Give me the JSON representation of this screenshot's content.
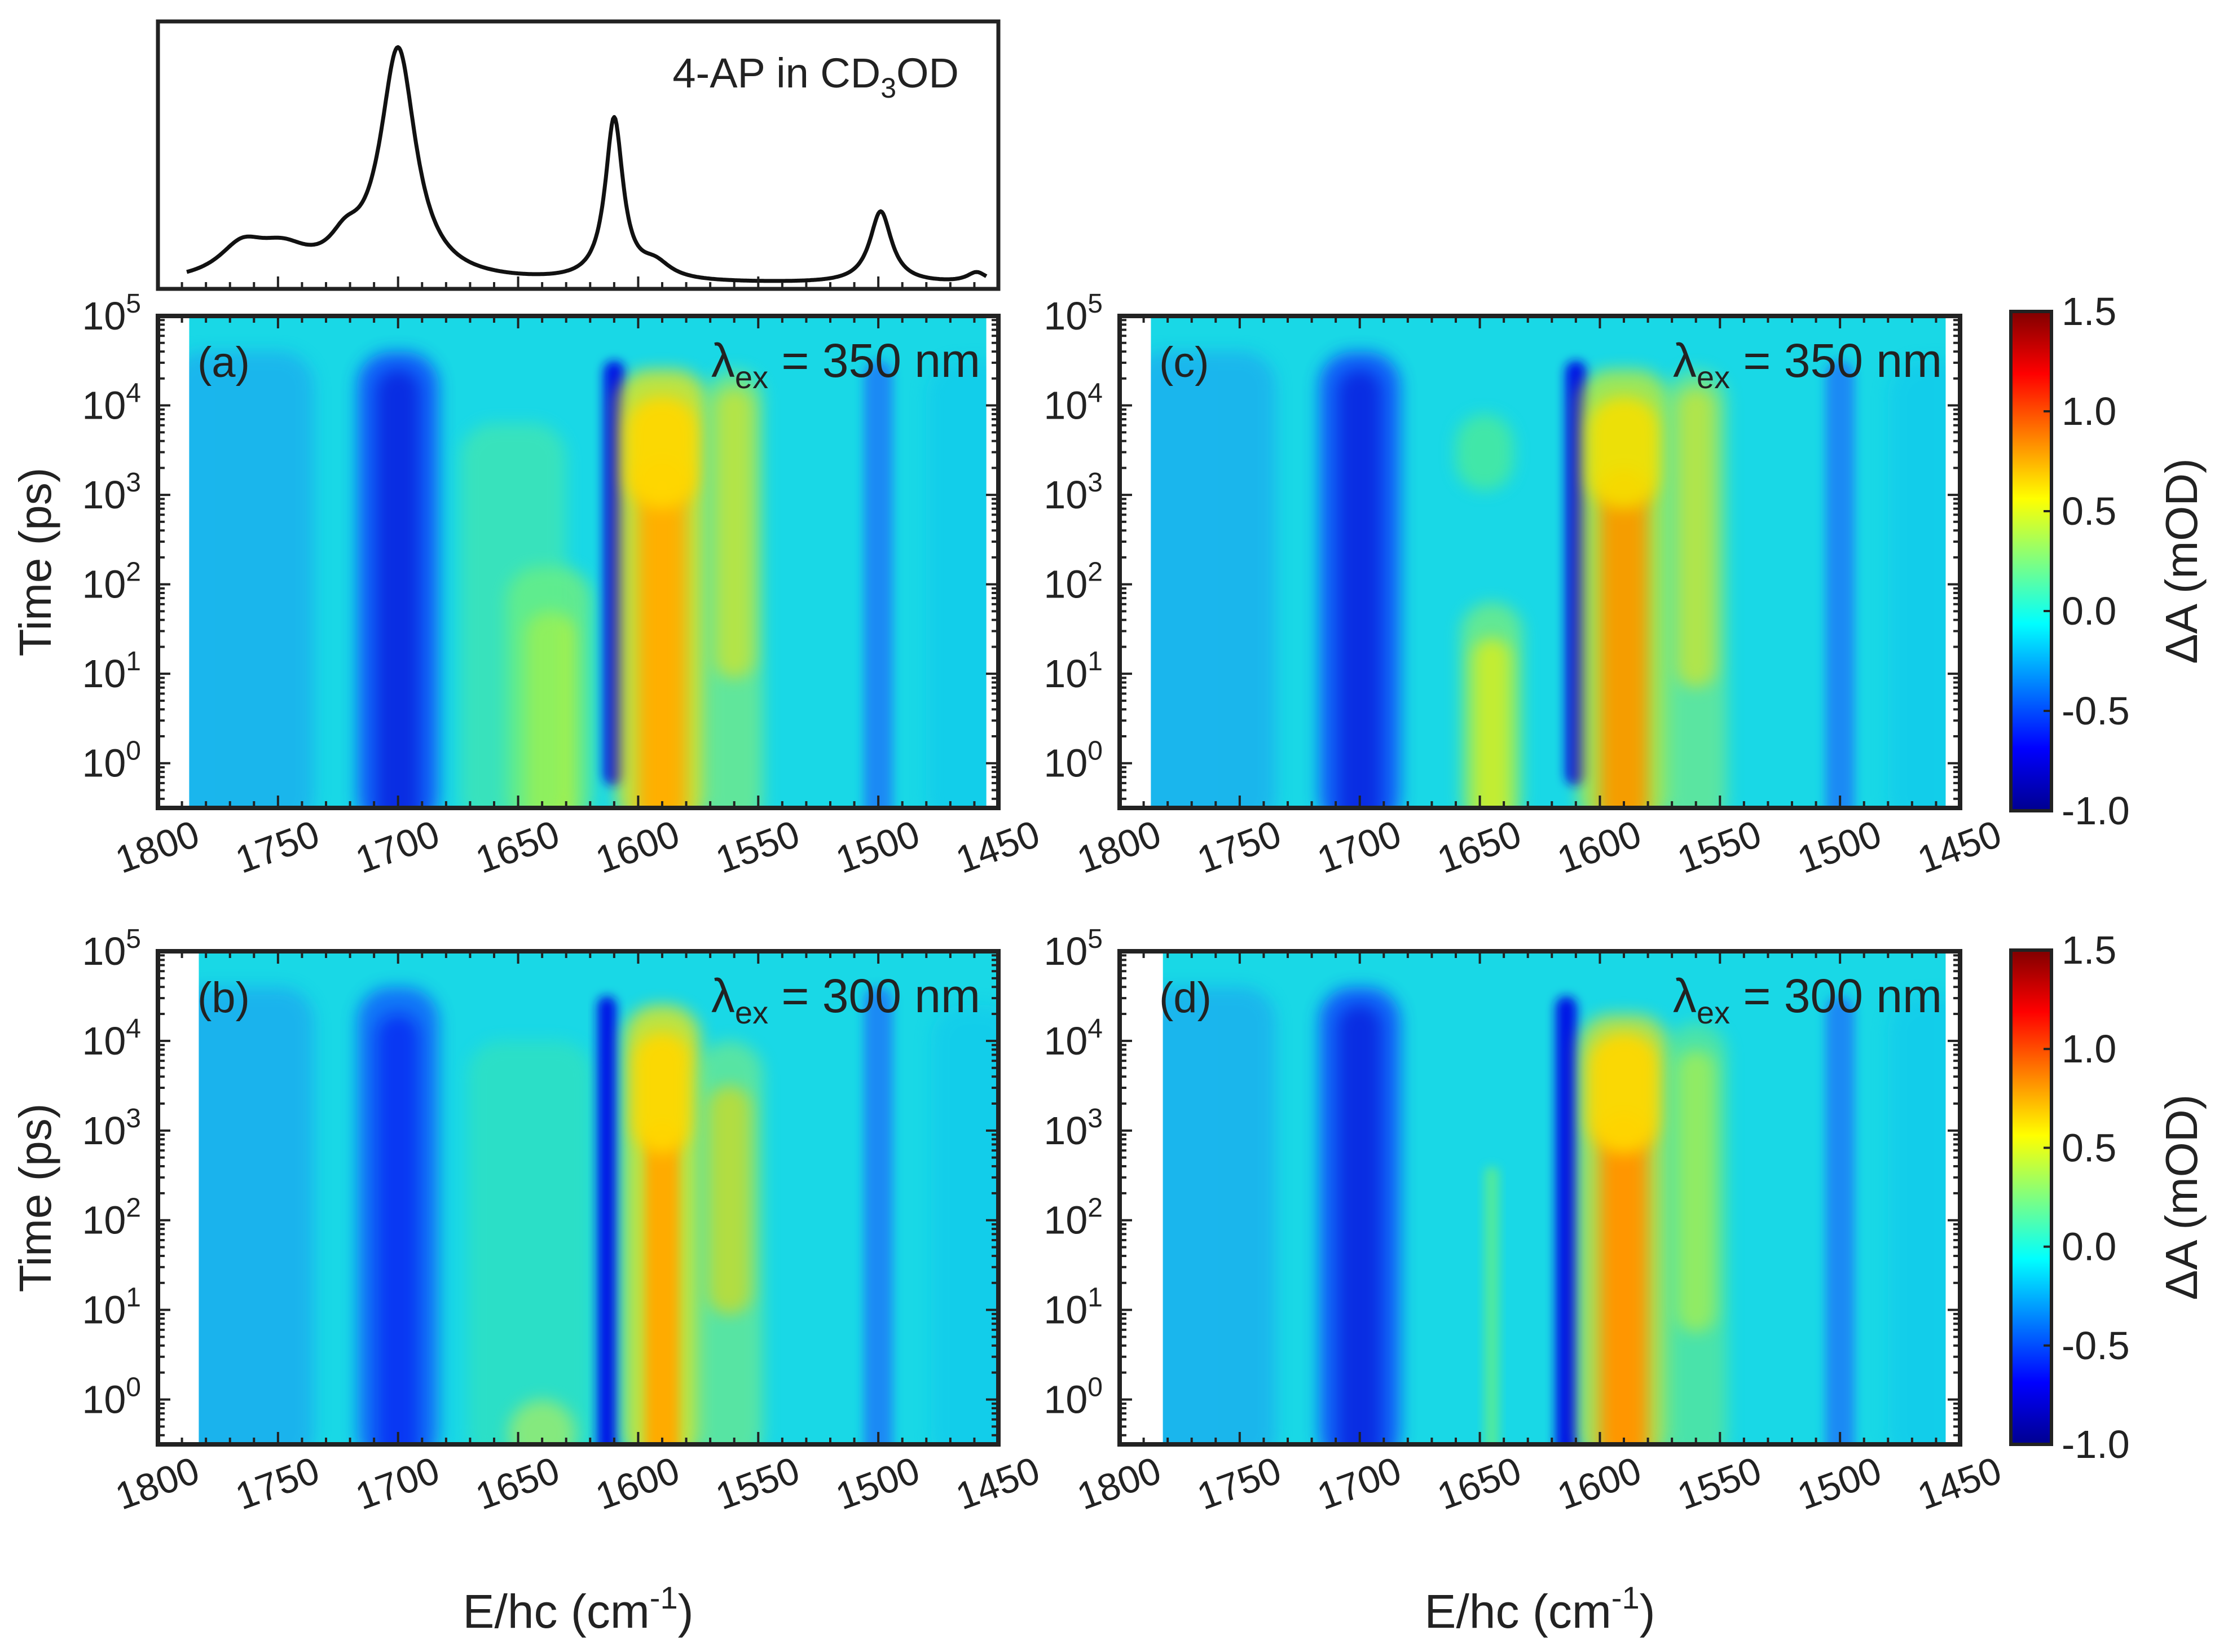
{
  "figure": {
    "xlabel": "E/hc (cm",
    "xlabel_sup": "-1",
    "xlabel_close": ")",
    "ylabel": "Time (ps)",
    "colorbar_label": "ΔA (mOD)",
    "tick_labels_x": [
      "1800",
      "1750",
      "1700",
      "1650",
      "1600",
      "1550",
      "1500",
      "1450"
    ],
    "tick_labels_y_base": "10",
    "tick_labels_y_exp": [
      "0",
      "1",
      "2",
      "3",
      "4",
      "5"
    ],
    "colorbar_ticks": [
      "1.5",
      "1.0",
      "0.5",
      "0.0",
      "-0.5",
      "-1.0"
    ]
  },
  "chart_data": [
    {
      "panel": "ftir",
      "type": "line",
      "label_main": "4-AP in CD",
      "label_sub": "3",
      "label_tail": "OD",
      "xlim": [
        1800,
        1450
      ],
      "peaks": [
        {
          "x": 1765,
          "h": 0.12,
          "w": 12
        },
        {
          "x": 1748,
          "h": 0.1,
          "w": 14
        },
        {
          "x": 1722,
          "h": 0.1,
          "w": 8
        },
        {
          "x": 1700,
          "h": 0.9,
          "w": 9
        },
        {
          "x": 1610,
          "h": 0.63,
          "w": 4.5
        },
        {
          "x": 1593,
          "h": 0.06,
          "w": 8
        },
        {
          "x": 1499,
          "h": 0.28,
          "w": 5.5
        },
        {
          "x": 1459,
          "h": 0.04,
          "w": 5
        }
      ]
    },
    {
      "panel": "(a)",
      "type": "heatmap",
      "excitation_symbol": "λ",
      "excitation_sub": "ex",
      "excitation_value": " = 350 nm",
      "xlim": [
        1800,
        1450
      ],
      "ylim_log10": [
        -0.5,
        5
      ],
      "data_x_range": [
        1787,
        1455
      ],
      "clim": [
        -1.0,
        1.5
      ]
    },
    {
      "panel": "(b)",
      "type": "heatmap",
      "excitation_symbol": "λ",
      "excitation_sub": "ex",
      "excitation_value": " = 300 nm",
      "xlim": [
        1800,
        1450
      ],
      "ylim_log10": [
        -0.5,
        5
      ],
      "data_x_range": [
        1783,
        1450
      ],
      "clim": [
        -1.0,
        1.5
      ]
    },
    {
      "panel": "(c)",
      "type": "heatmap",
      "excitation_symbol": "λ",
      "excitation_sub": "ex",
      "excitation_value": " = 350 nm",
      "xlim": [
        1800,
        1450
      ],
      "ylim_log10": [
        -0.5,
        5
      ],
      "data_x_range": [
        1787,
        1456
      ],
      "clim": [
        -1.0,
        1.5
      ]
    },
    {
      "panel": "(d)",
      "type": "heatmap",
      "excitation_symbol": "λ",
      "excitation_sub": "ex",
      "excitation_value": " = 300 nm",
      "xlim": [
        1800,
        1450
      ],
      "ylim_log10": [
        -0.5,
        5
      ],
      "data_x_range": [
        1782,
        1456
      ],
      "clim": [
        -1.0,
        1.5
      ]
    }
  ]
}
